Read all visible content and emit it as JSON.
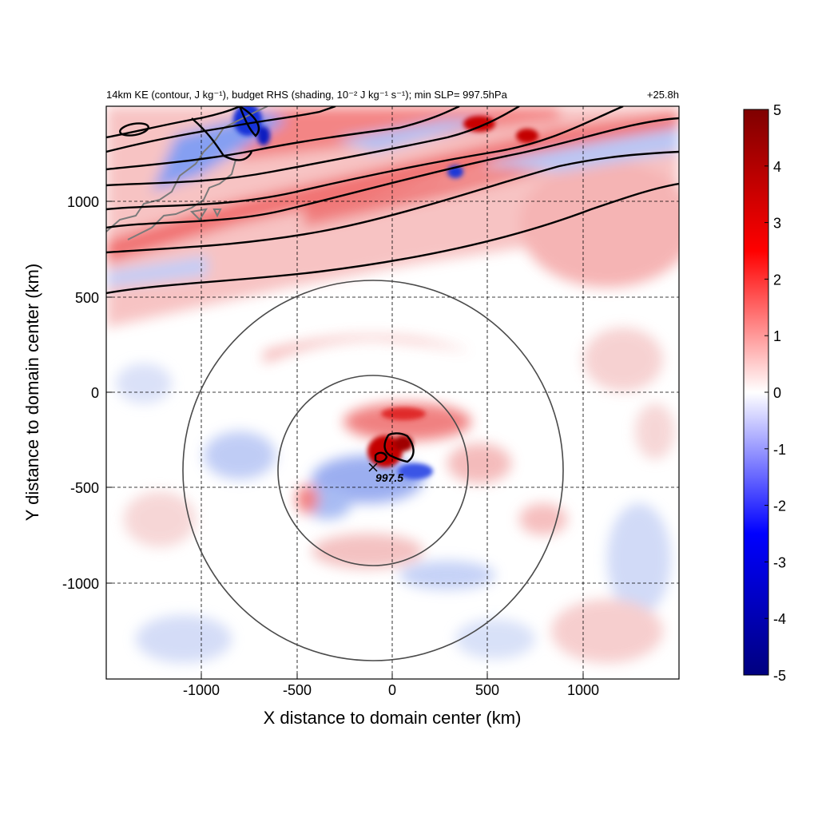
{
  "chart_data": {
    "type": "heatmap",
    "title": "14km KE (contour, J kg⁻¹), budget RHS (shading, 10⁻² J kg⁻¹ s⁻¹); min SLP= 997.5hPa",
    "time_label": "+25.8h",
    "xlabel": "X distance to domain center (km)",
    "ylabel": "Y distance to domain center (km)",
    "xlim": [
      -1500,
      1500
    ],
    "ylim": [
      -1500,
      1500
    ],
    "xticks": [
      -1000,
      -500,
      0,
      500,
      1000
    ],
    "yticks": [
      -1000,
      -500,
      0,
      500,
      1000
    ],
    "grid": true,
    "colorbar": {
      "range": [
        -5,
        5
      ],
      "ticks": [
        5,
        4,
        3,
        2,
        1,
        0,
        -1,
        -2,
        -3,
        -4,
        -5
      ],
      "colors": {
        "neg_end": "#00007f",
        "neg_mid": "#0000ff",
        "zero": "#ffffff",
        "pos_mid": "#ff0000",
        "pos_end": "#7f0000"
      }
    },
    "storm_center": {
      "x": -105,
      "y": -385,
      "label": "997.5",
      "marker": "x"
    },
    "range_rings": [
      {
        "cx": -105,
        "cy": -410,
        "r": 500
      },
      {
        "cx": -105,
        "cy": -410,
        "r": 1000
      }
    ],
    "features": [
      {
        "name": "positive-band-north",
        "polarity": "positive"
      },
      {
        "name": "positive-core",
        "polarity": "positive"
      },
      {
        "name": "negative-band-north",
        "polarity": "negative"
      }
    ]
  }
}
